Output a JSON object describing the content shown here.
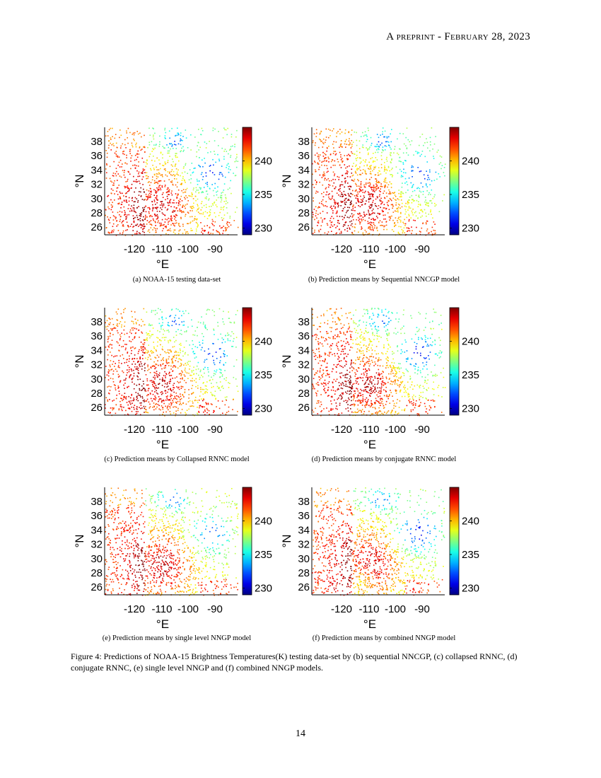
{
  "header": {
    "prefix": "A preprint - ",
    "date": "February 28, 2023"
  },
  "colorbar": {
    "ticks": [
      240,
      235,
      230
    ],
    "range": [
      229,
      245
    ],
    "colormap": "jet"
  },
  "axes": {
    "yticks": [
      "38",
      "36",
      "34",
      "32",
      "30",
      "28",
      "26"
    ],
    "xticks": [
      "-120",
      "-110",
      "-100",
      "-90"
    ],
    "ylabel": "°N",
    "xlabel": "°E"
  },
  "panels": [
    {
      "id": "a",
      "caption": "(a) NOAA-15 testing data-set"
    },
    {
      "id": "b",
      "caption": "(b) Prediction means by Sequential NNCGP model"
    },
    {
      "id": "c",
      "caption": "(c) Prediction means by Collapsed RNNC model"
    },
    {
      "id": "d",
      "caption": "(d)  Prediction means by conjugate RNNC model"
    },
    {
      "id": "e",
      "caption": "(e) Prediction means by single level NNGP model"
    },
    {
      "id": "f",
      "caption": "(f) Prediction means by combined NNGP model"
    }
  ],
  "figure_caption": "Figure 4: Predictions of NOAA-15 Brightness Temperatures(K) testing data-set by (b) sequential NNCGP, (c) collapsed RNNC, (d) conjugate RNNC, (e) single level NNGP and (f) combined NNGP models.",
  "page_number": "14"
}
